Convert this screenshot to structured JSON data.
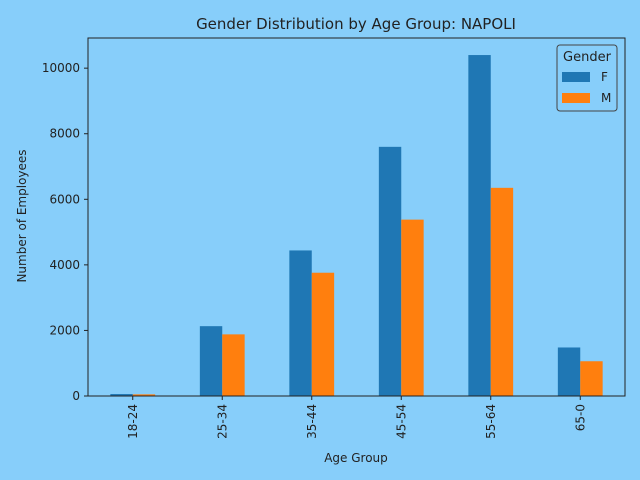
{
  "chart_data": {
    "type": "bar",
    "title": "Gender Distribution by Age Group: NAPOLI",
    "xlabel": "Age Group",
    "ylabel": "Number of Employees",
    "categories": [
      "18-24",
      "25-34",
      "35-44",
      "45-54",
      "55-64",
      "65-0"
    ],
    "series": [
      {
        "name": "F",
        "color": "#1f77b4",
        "values": [
          60,
          2130,
          4440,
          7600,
          10400,
          1480
        ]
      },
      {
        "name": "M",
        "color": "#ff7f0e",
        "values": [
          50,
          1880,
          3760,
          5380,
          6350,
          1060
        ]
      }
    ],
    "ylim": [
      0,
      10920
    ],
    "yticks": [
      0,
      2000,
      4000,
      6000,
      8000,
      10000
    ],
    "legend": {
      "title": "Gender",
      "placement": "top-right"
    },
    "grid": false
  },
  "colors": {
    "background": "#87cefa",
    "plot_background": "#87cefa",
    "frame": "#222222"
  }
}
